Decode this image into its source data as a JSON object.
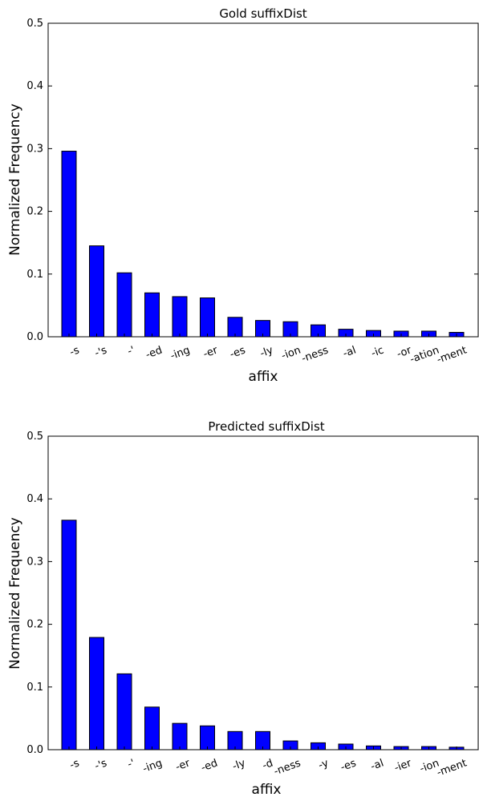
{
  "chart_data": [
    {
      "type": "bar",
      "title": "Gold suffixDist",
      "xlabel": "affix",
      "ylabel": "Normalized Frequency",
      "ylim": [
        0,
        0.5
      ],
      "yticks": [
        "0.0",
        "0.1",
        "0.2",
        "0.3",
        "0.4",
        "0.5"
      ],
      "bar_color": "#0000ff",
      "categories": [
        "-s",
        "-'s",
        "-'",
        "-ed",
        "-ing",
        "-er",
        "-es",
        "-ly",
        "-ion",
        "-ness",
        "-al",
        "-ic",
        "-or",
        "-ation",
        "-ment"
      ],
      "values": [
        0.296,
        0.145,
        0.102,
        0.07,
        0.064,
        0.062,
        0.031,
        0.026,
        0.024,
        0.019,
        0.012,
        0.01,
        0.009,
        0.009,
        0.007
      ]
    },
    {
      "type": "bar",
      "title": "Predicted suffixDist",
      "xlabel": "affix",
      "ylabel": "Normalized Frequency",
      "ylim": [
        0,
        0.5
      ],
      "yticks": [
        "0.0",
        "0.1",
        "0.2",
        "0.3",
        "0.4",
        "0.5"
      ],
      "bar_color": "#0000ff",
      "categories": [
        "-s",
        "-'s",
        "-'",
        "-ing",
        "-er",
        "-ed",
        "-ly",
        "-d",
        "-ness",
        "-y",
        "-es",
        "-al",
        "-ier",
        "-ion",
        "-ment"
      ],
      "values": [
        0.366,
        0.179,
        0.121,
        0.068,
        0.042,
        0.038,
        0.029,
        0.029,
        0.014,
        0.011,
        0.009,
        0.006,
        0.005,
        0.005,
        0.004
      ]
    }
  ]
}
